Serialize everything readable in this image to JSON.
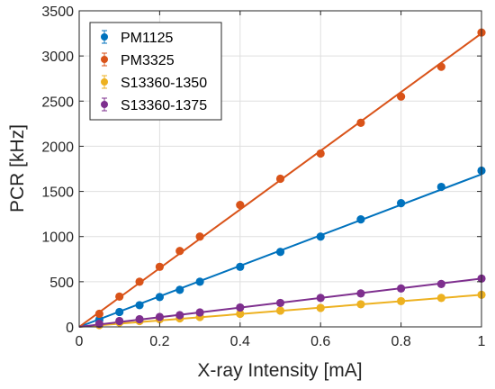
{
  "chart_data": {
    "type": "scatter",
    "xlabel": "X-ray Intensity [mA]",
    "ylabel": "PCR [kHz]",
    "xlim": [
      0,
      1
    ],
    "ylim": [
      0,
      3500
    ],
    "x_ticks": [
      0,
      0.2,
      0.4,
      0.6,
      0.8,
      1
    ],
    "x_tick_labels": [
      "0",
      "0.2",
      "0.4",
      "0.6",
      "0.8",
      "1"
    ],
    "y_ticks": [
      0,
      500,
      1000,
      1500,
      2000,
      2500,
      3000,
      3500
    ],
    "y_tick_labels": [
      "0",
      "500",
      "1000",
      "1500",
      "2000",
      "2500",
      "3000",
      "3500"
    ],
    "grid": true,
    "legend_position": "top-left",
    "x": [
      0.05,
      0.1,
      0.15,
      0.2,
      0.25,
      0.3,
      0.4,
      0.5,
      0.6,
      0.7,
      0.8,
      0.9,
      1.0
    ],
    "series": [
      {
        "name": "PM1125",
        "color": "#0072BD",
        "values": [
          80,
          165,
          240,
          330,
          410,
          500,
          665,
          830,
          1000,
          1190,
          1370,
          1550,
          1730
        ],
        "fit_slope": 1690
      },
      {
        "name": "PM3325",
        "color": "#D95319",
        "values": [
          145,
          335,
          500,
          665,
          840,
          1000,
          1350,
          1640,
          1920,
          2260,
          2550,
          2880,
          3260
        ],
        "fit_slope": 3250
      },
      {
        "name": "S13360-1350",
        "color": "#EDB120",
        "values": [
          20,
          50,
          65,
          85,
          95,
          110,
          145,
          180,
          210,
          250,
          285,
          320,
          355
        ],
        "fit_slope": 355
      },
      {
        "name": "S13360-1375",
        "color": "#7E2F8E",
        "values": [
          35,
          65,
          85,
          110,
          130,
          160,
          215,
          265,
          320,
          370,
          425,
          475,
          535
        ],
        "fit_slope": 535
      }
    ]
  }
}
